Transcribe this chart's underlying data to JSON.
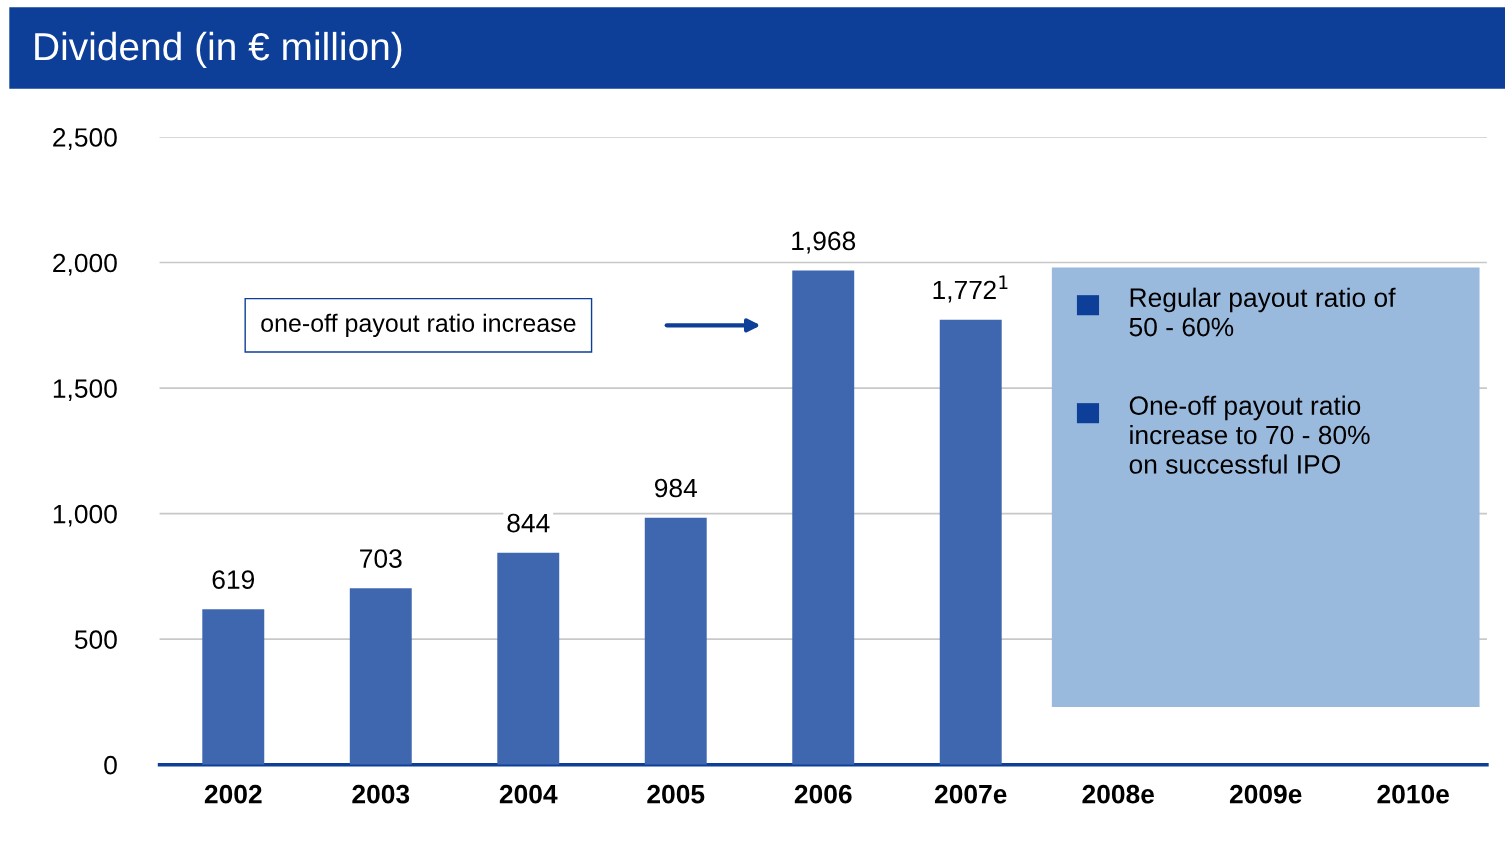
{
  "chart_data": {
    "type": "bar",
    "title": "Dividend (in € million)",
    "categories": [
      "2002",
      "2003",
      "2004",
      "2005",
      "2006",
      "2007e",
      "2008e",
      "2009e",
      "2010e"
    ],
    "values": [
      619,
      703,
      844,
      984,
      1968,
      1772,
      null,
      null,
      null
    ],
    "value_labels": [
      "619",
      "703",
      "844",
      "984",
      "1,968",
      "1,772$^{1}$",
      null,
      null,
      null
    ],
    "color": "#3f67b0",
    "ylim": [
      0,
      2500
    ],
    "yticks": [
      0,
      {
        "value": 500,
        "label": "500"
      },
      {
        "value": 1000,
        "label": "1,000"
      },
      {
        "value": 1500,
        "label": "1,500"
      },
      {
        "value": 2000,
        "label": "2,000"
      },
      {
        "value": 2500,
        "label": "2,500"
      }
    ],
    "grid": "y",
    "annotations": [
      "one-off payout ratio increase",
      "Regular payout ratio of 50 - 60%",
      "One-off payout ratio increase to 70 - 80% on successful IPO"
    ]
  }
}
